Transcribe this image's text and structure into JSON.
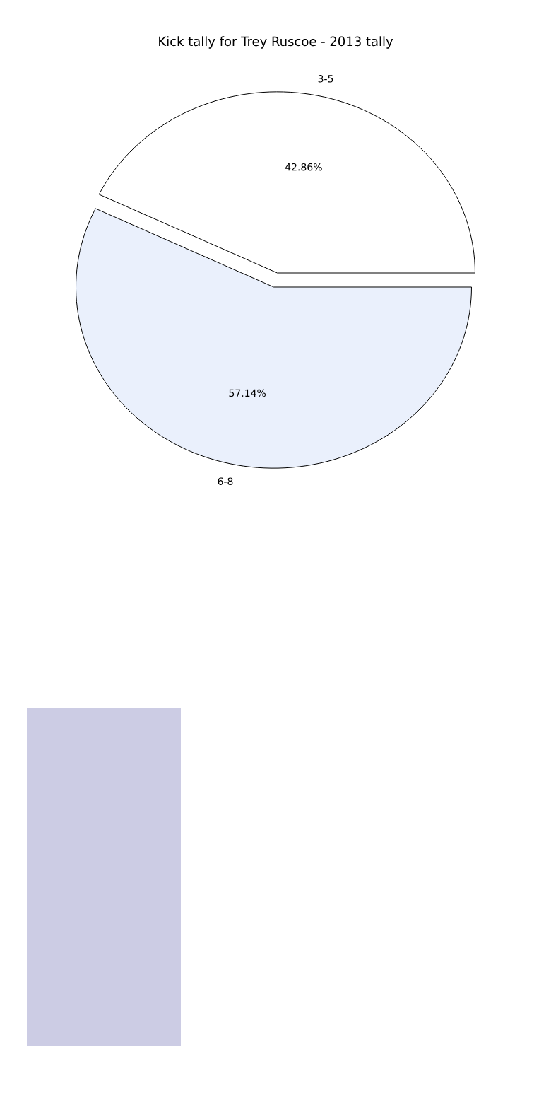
{
  "chart_data": {
    "type": "pie",
    "title": "Kick tally for Trey Ruscoe - 2013 tally",
    "categories": [
      "3-5",
      "6-8"
    ],
    "values": [
      42.86,
      57.14
    ],
    "value_labels": [
      "42.86%",
      "57.14%"
    ],
    "colors": [
      "#ffffff",
      "#eaf0fc"
    ]
  }
}
